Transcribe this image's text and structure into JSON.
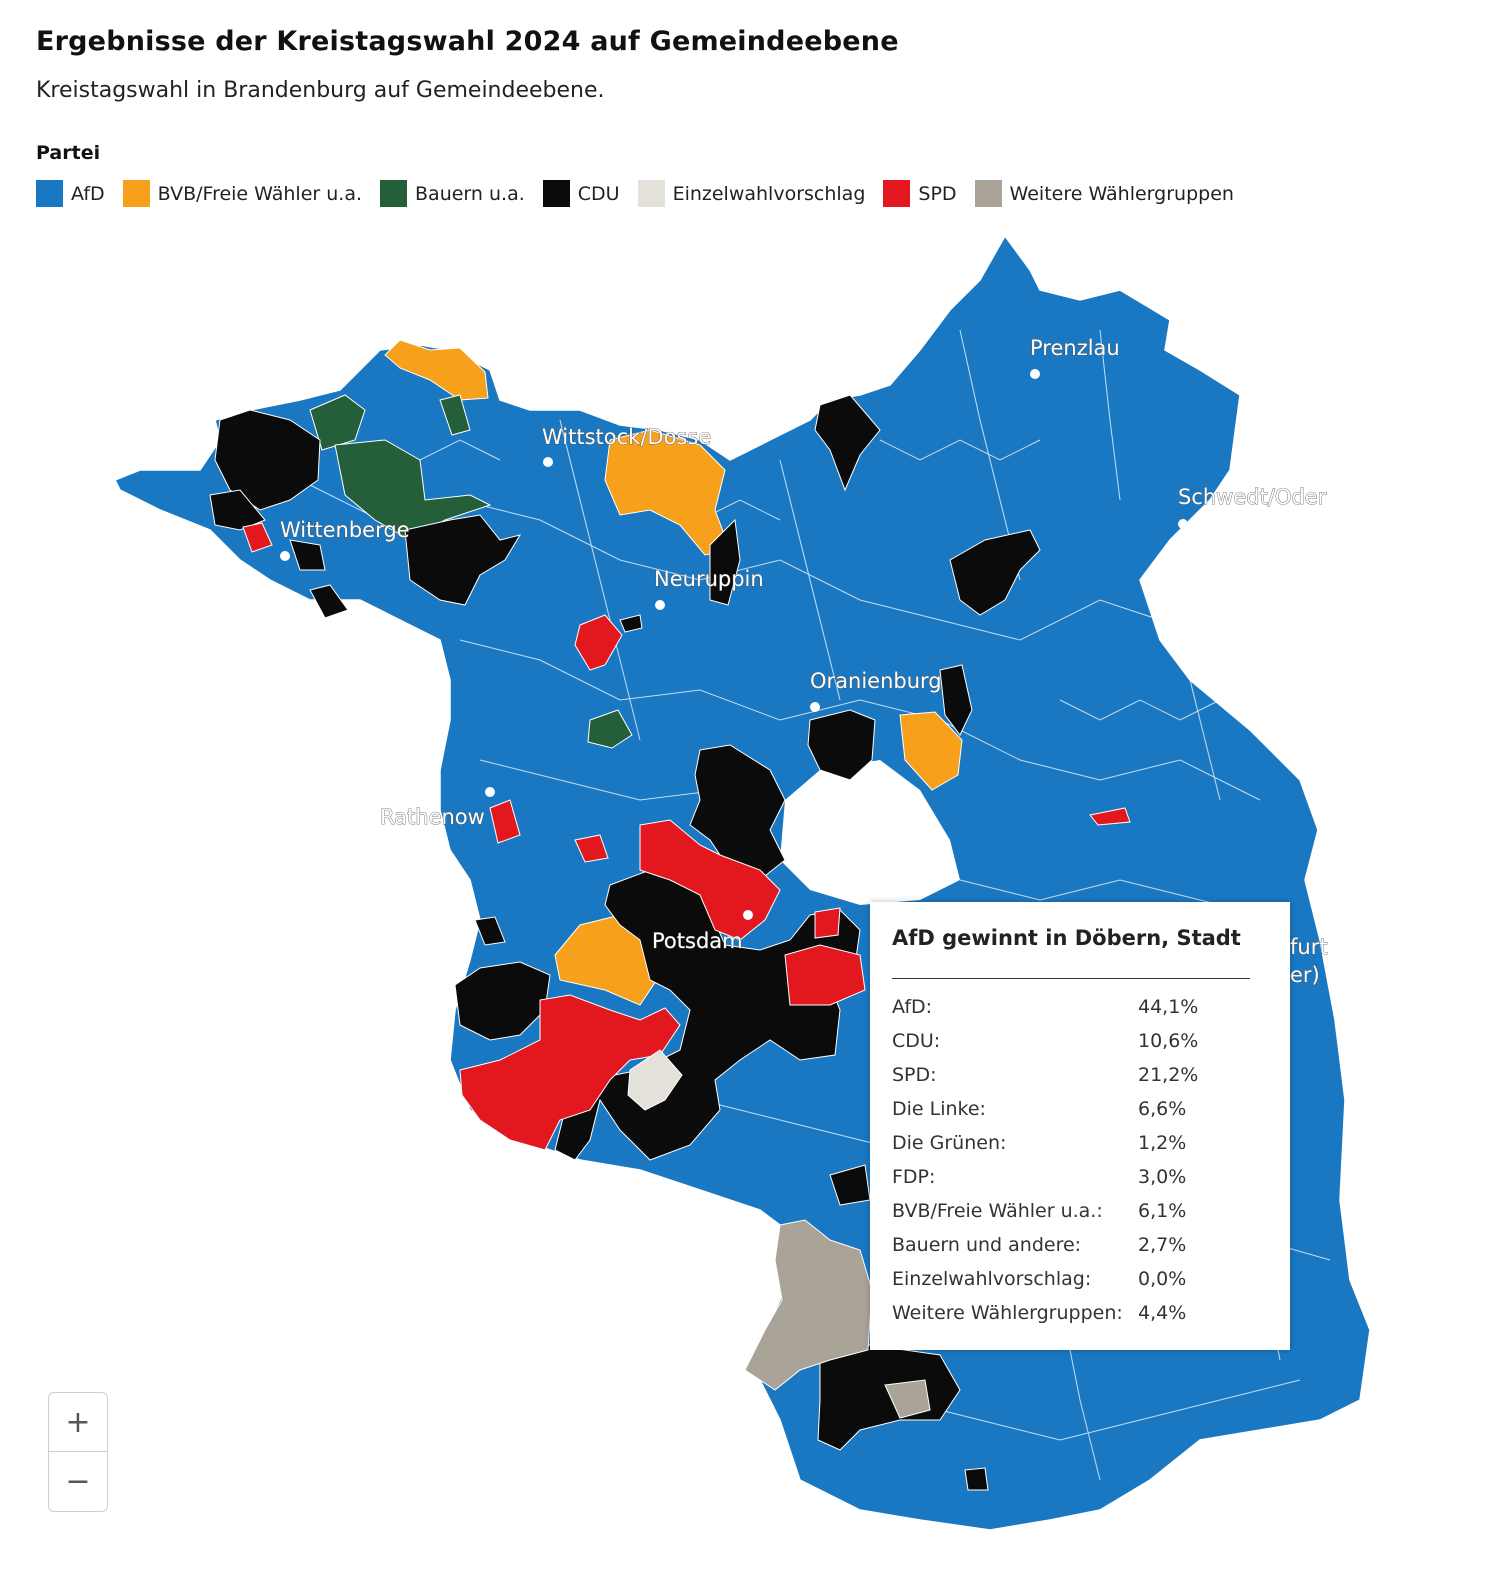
{
  "header": {
    "title": "Ergebnisse der Kreistagswahl 2024 auf Gemeindeebene",
    "subtitle": "Kreistagswahl in Brandenburg auf Gemeindeebene."
  },
  "legend": {
    "title": "Partei",
    "items": [
      {
        "label": "AfD",
        "color": "#1a78c2"
      },
      {
        "label": "BVB/Freie Wähler u.a.",
        "color": "#f7a01c"
      },
      {
        "label": "Bauern u.a.",
        "color": "#255f3a"
      },
      {
        "label": "CDU",
        "color": "#0b0b0b"
      },
      {
        "label": "Einzelwahlvorschlag",
        "color": "#e3e1da"
      },
      {
        "label": "SPD",
        "color": "#e3181f"
      },
      {
        "label": "Weitere Wählergruppen",
        "color": "#a9a497"
      }
    ]
  },
  "map": {
    "cities": [
      {
        "name": "Prenzlau"
      },
      {
        "name": "Wittstock/Dosse"
      },
      {
        "name": "Schwedt/Oder"
      },
      {
        "name": "Wittenberge"
      },
      {
        "name": "Neuruppin"
      },
      {
        "name": "Oranienburg"
      },
      {
        "name": "Rathenow"
      },
      {
        "name": "Potsdam"
      },
      {
        "name": "furt"
      },
      {
        "name": "er)"
      }
    ]
  },
  "tooltip": {
    "heading": "AfD gewinnt in Döbern, Stadt",
    "rows": [
      {
        "party": "AfD:",
        "value": "44,1%"
      },
      {
        "party": "CDU:",
        "value": "10,6%"
      },
      {
        "party": "SPD:",
        "value": "21,2%"
      },
      {
        "party": "Die Linke:",
        "value": "6,6%"
      },
      {
        "party": "Die Grünen:",
        "value": "1,2%"
      },
      {
        "party": "FDP:",
        "value": "3,0%"
      },
      {
        "party": "BVB/Freie Wähler u.a.:",
        "value": "6,1%"
      },
      {
        "party": "Bauern und andere:",
        "value": "2,7%"
      },
      {
        "party": "Einzelwahlvorschlag:",
        "value": "0,0%"
      },
      {
        "party": "Weitere Wählergruppen:",
        "value": "4,4%"
      }
    ]
  },
  "zoom": {
    "in_label": "+",
    "out_label": "−"
  }
}
